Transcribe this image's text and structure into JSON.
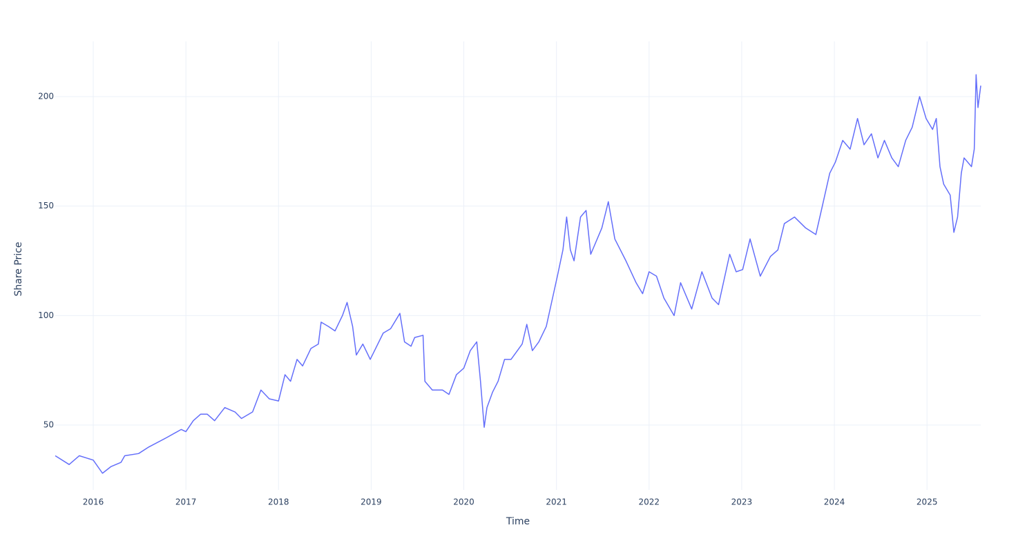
{
  "chart_data": {
    "type": "line",
    "x_label": "Time",
    "y_label": "Share Price",
    "color": "#636efa",
    "grid": true,
    "xlim": [
      2015.59,
      2025.58
    ],
    "ylim": [
      20.4,
      225.2
    ],
    "xticks": [
      2016,
      2017,
      2018,
      2019,
      2020,
      2021,
      2022,
      2023,
      2024,
      2025
    ],
    "yticks": [
      50,
      100,
      150,
      200
    ],
    "x": [
      2015.59,
      2015.74,
      2015.85,
      2016.0,
      2016.1,
      2016.19,
      2016.3,
      2016.34,
      2016.49,
      2016.6,
      2016.78,
      2016.95,
      2017.0,
      2017.08,
      2017.16,
      2017.23,
      2017.31,
      2017.42,
      2017.53,
      2017.6,
      2017.72,
      2017.81,
      2017.9,
      2018.0,
      2018.07,
      2018.13,
      2018.2,
      2018.26,
      2018.35,
      2018.43,
      2018.46,
      2018.54,
      2018.61,
      2018.69,
      2018.74,
      2018.8,
      2018.84,
      2018.91,
      2018.99,
      2019.06,
      2019.13,
      2019.21,
      2019.31,
      2019.36,
      2019.43,
      2019.47,
      2019.56,
      2019.58,
      2019.66,
      2019.77,
      2019.84,
      2019.92,
      2020.0,
      2020.07,
      2020.14,
      2020.18,
      2020.22,
      2020.25,
      2020.31,
      2020.37,
      2020.44,
      2020.51,
      2020.63,
      2020.68,
      2020.74,
      2020.81,
      2020.89,
      2021.01,
      2021.07,
      2021.11,
      2021.15,
      2021.19,
      2021.26,
      2021.32,
      2021.37,
      2021.49,
      2021.56,
      2021.63,
      2021.75,
      2021.86,
      2021.93,
      2022.0,
      2022.08,
      2022.16,
      2022.27,
      2022.34,
      2022.46,
      2022.57,
      2022.68,
      2022.75,
      2022.87,
      2022.94,
      2023.01,
      2023.09,
      2023.2,
      2023.31,
      2023.39,
      2023.46,
      2023.57,
      2023.69,
      2023.8,
      2023.87,
      2023.95,
      2024.01,
      2024.09,
      2024.17,
      2024.25,
      2024.32,
      2024.4,
      2024.47,
      2024.54,
      2024.62,
      2024.69,
      2024.77,
      2024.84,
      2024.92,
      2024.99,
      2025.06,
      2025.1,
      2025.14,
      2025.18,
      2025.25,
      2025.29,
      2025.33,
      2025.37,
      2025.4,
      2025.48,
      2025.51,
      2025.53,
      2025.55,
      2025.58
    ],
    "values": [
      36,
      32,
      36,
      34,
      28,
      31,
      33,
      36,
      37,
      40,
      44,
      48,
      47,
      52,
      55,
      55,
      52,
      58,
      56,
      53,
      56,
      66,
      62,
      61,
      73,
      70,
      80,
      77,
      85,
      87,
      97,
      95,
      93,
      100,
      106,
      95,
      82,
      87,
      80,
      86,
      92,
      94,
      101,
      88,
      86,
      90,
      91,
      70,
      66,
      66,
      64,
      73,
      76,
      84,
      88,
      70,
      49,
      58,
      65,
      70,
      80,
      80,
      87,
      96,
      84,
      88,
      95,
      118,
      130,
      145,
      130,
      125,
      145,
      148,
      128,
      140,
      152,
      135,
      125,
      115,
      110,
      120,
      118,
      108,
      100,
      115,
      103,
      120,
      108,
      105,
      128,
      120,
      121,
      135,
      118,
      127,
      130,
      142,
      145,
      140,
      137,
      150,
      165,
      170,
      180,
      176,
      190,
      178,
      183,
      172,
      180,
      172,
      168,
      180,
      186,
      200,
      190,
      185,
      190,
      168,
      160,
      155,
      138,
      145,
      165,
      172,
      168,
      176,
      210,
      195,
      205
    ]
  }
}
